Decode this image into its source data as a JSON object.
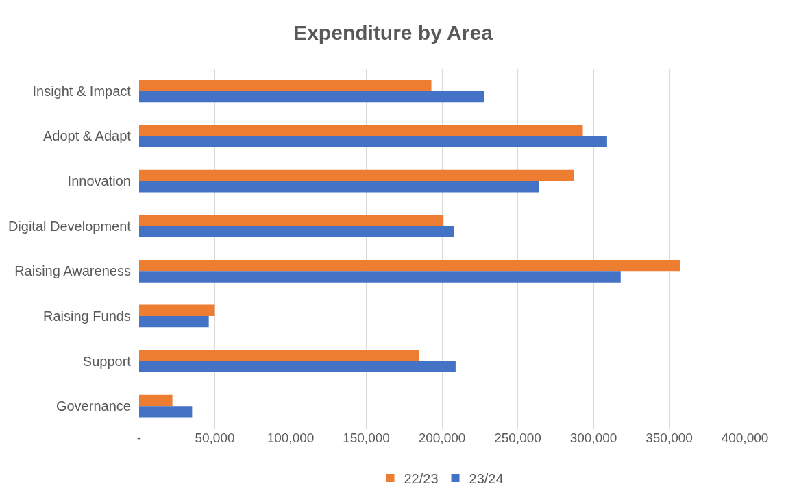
{
  "chart_data": {
    "type": "bar",
    "title": "Expenditure by Area",
    "orientation": "horizontal",
    "categories": [
      "Insight & Impact",
      "Adopt & Adapt",
      "Innovation",
      "Digital Development",
      "Raising Awareness",
      "Raising Funds",
      "Support",
      "Governance"
    ],
    "series": [
      {
        "name": "22/23",
        "color": "#ed7d31",
        "values": [
          193000,
          293000,
          287000,
          201000,
          357000,
          50000,
          185000,
          22000
        ]
      },
      {
        "name": "23/24",
        "color": "#4472c4",
        "values": [
          228000,
          309000,
          264000,
          208000,
          318000,
          46000,
          209000,
          35000
        ]
      }
    ],
    "xlim": [
      0,
      400000
    ],
    "xticks": [
      {
        "value": 0,
        "label": "-"
      },
      {
        "value": 50000,
        "label": "50,000"
      },
      {
        "value": 100000,
        "label": "100,000"
      },
      {
        "value": 150000,
        "label": "150,000"
      },
      {
        "value": 200000,
        "label": "200,000"
      },
      {
        "value": 250000,
        "label": "250,000"
      },
      {
        "value": 300000,
        "label": "300,000"
      },
      {
        "value": 350000,
        "label": "350,000"
      },
      {
        "value": 400000,
        "label": "400,000"
      }
    ],
    "grid": "x",
    "legend": "bottom"
  }
}
